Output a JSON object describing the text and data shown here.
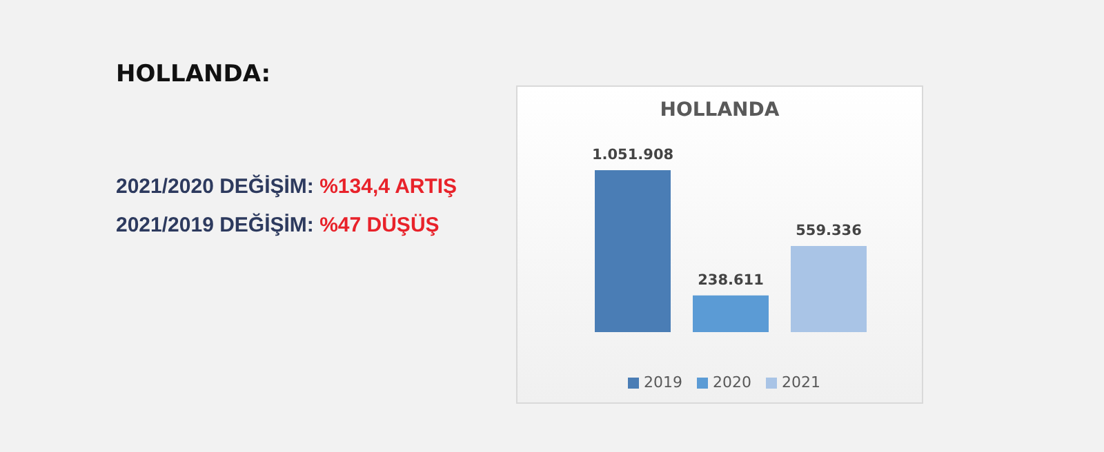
{
  "chart_data": {
    "type": "bar",
    "title": "HOLLANDA",
    "annotations": [
      "HOLLANDA:",
      "2021/2020 DEĞİŞİM: %134,4 ARTIŞ",
      "2021/2019 DEĞİŞİM: %47 DÜŞÜŞ"
    ],
    "categories": [
      null
    ],
    "series": [
      {
        "name": "2019",
        "color": "#4a7db5",
        "values": [
          1051908
        ],
        "value_labels": [
          "1.051.908"
        ]
      },
      {
        "name": "2020",
        "color": "#5b9bd5",
        "values": [
          238611
        ],
        "value_labels": [
          "238.611"
        ]
      },
      {
        "name": "2021",
        "color": "#a9c4e6",
        "values": [
          559336
        ],
        "value_labels": [
          "559.336"
        ]
      }
    ],
    "legend": "bottom"
  }
}
